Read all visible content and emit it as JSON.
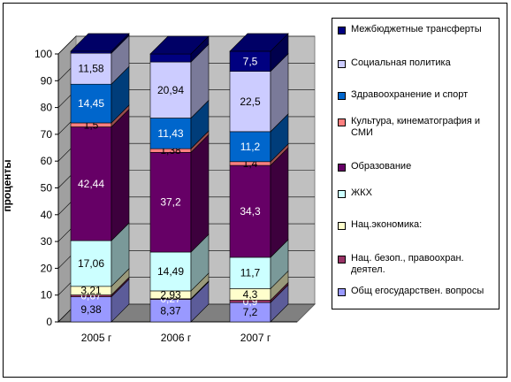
{
  "chart_data": {
    "type": "bar",
    "stacked": true,
    "three_d": true,
    "ylabel": "проценты",
    "ylim": [
      0,
      100
    ],
    "yticks": [
      0,
      10,
      20,
      30,
      40,
      50,
      60,
      70,
      80,
      90,
      100
    ],
    "grid": true,
    "legend_position": "right",
    "categories": [
      "2005 г",
      "2006 г",
      "2007 г"
    ],
    "series": [
      {
        "name": "Общ егосударствен. вопросы",
        "color": "#9999ff",
        "values": [
          9.38,
          8.37,
          7.2
        ],
        "labels": [
          "9,38",
          "8,37",
          "7,2"
        ]
      },
      {
        "name": "Нац. безоп., правоохран. деятел.",
        "color": "#993366",
        "values": [
          0.67,
          0.27,
          0.9
        ],
        "labels": [
          "0,67",
          "0,27",
          "0,9"
        ]
      },
      {
        "name": "Нац.экономика:",
        "color": "#ffffcc",
        "values": [
          3.21,
          2.93,
          4.3
        ],
        "labels": [
          "3,21",
          "2,93",
          "4,3"
        ]
      },
      {
        "name": "ЖКХ",
        "color": "#ccffff",
        "values": [
          17.06,
          14.49,
          11.7
        ],
        "labels": [
          "17,06",
          "14,49",
          "11,7"
        ]
      },
      {
        "name": "Образование",
        "color": "#660066",
        "values": [
          42.44,
          37.2,
          34.3
        ],
        "labels": [
          "42,44",
          "37,2",
          "34,3"
        ]
      },
      {
        "name": "Культура, кинематография и СМИ",
        "color": "#ff8080",
        "values": [
          1.5,
          1.38,
          1.4
        ],
        "labels": [
          "1,5",
          "1,38",
          "1,4"
        ]
      },
      {
        "name": "Здравоохранение и спорт",
        "color": "#0066cc",
        "values": [
          14.45,
          11.43,
          11.2
        ],
        "labels": [
          "14,45",
          "11,43",
          "11,2"
        ]
      },
      {
        "name": "Социальная политика",
        "color": "#ccccff",
        "values": [
          11.58,
          20.94,
          22.5
        ],
        "labels": [
          "11,58",
          "20,94",
          "22,5"
        ]
      },
      {
        "name": "Межбюджетные трансферты",
        "color": "#000080",
        "values": [
          0.71,
          2.99,
          7.5
        ],
        "labels": [
          "",
          "",
          "7,5"
        ]
      }
    ]
  }
}
